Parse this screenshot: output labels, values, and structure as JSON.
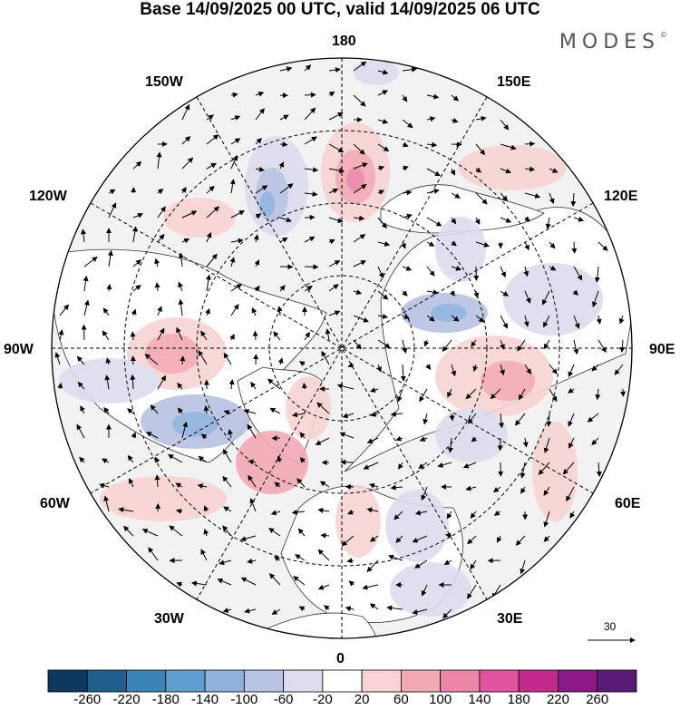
{
  "title": "Base 14/09/2025 00 UTC, valid 14/09/2025 06 UTC",
  "brand": {
    "name": "MODES",
    "mark": "©"
  },
  "longitude_labels": {
    "n180": "180",
    "e150": "150E",
    "e120": "120E",
    "e90": "90E",
    "e60": "60E",
    "e30": "30E",
    "n0": "0",
    "w30": "30W",
    "w60": "60W",
    "w90": "90W",
    "w120": "120W",
    "w150": "150W"
  },
  "vector_reference": {
    "value": "30"
  },
  "colorbar": {
    "labels": [
      "-260",
      "-220",
      "-180",
      "-140",
      "-100",
      "-60",
      "-20",
      "20",
      "60",
      "100",
      "140",
      "180",
      "220",
      "260"
    ],
    "colors": [
      "#0d3a5c",
      "#1f5f8e",
      "#3a85b8",
      "#5f9fcf",
      "#8fb1dc",
      "#b8c3e2",
      "#dcdcee",
      "#ffffff",
      "#f8d3d3",
      "#f1a9b4",
      "#ec86a8",
      "#e2559e",
      "#c12a8a",
      "#8b1a88",
      "#5a1a78"
    ]
  },
  "colors": {
    "land": "#e6e6e6",
    "ocean": "#f2f2f2",
    "grid": "#000000"
  }
}
